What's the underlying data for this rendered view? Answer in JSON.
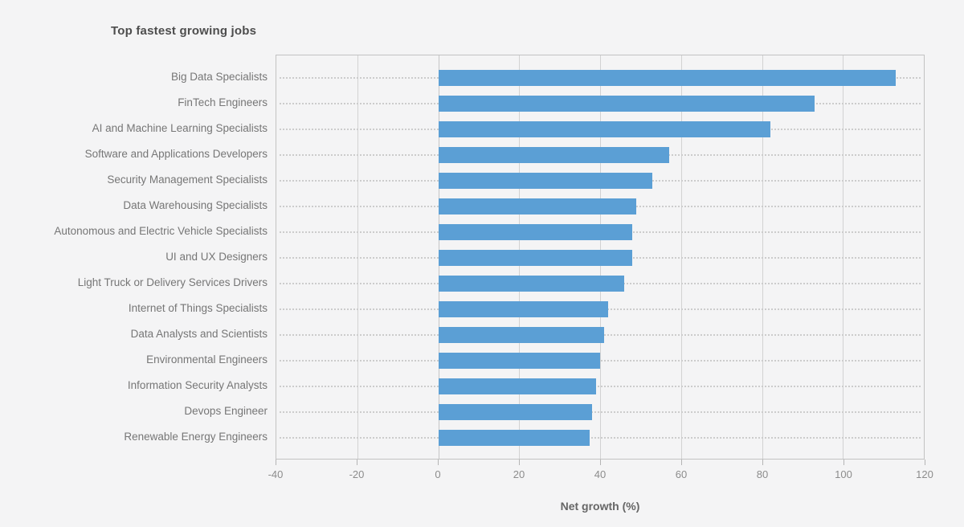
{
  "chart": {
    "title": "Top fastest growing jobs",
    "xlabel": "Net growth (%)"
  },
  "chart_data": {
    "type": "bar",
    "orientation": "horizontal",
    "title": "Top fastest growing jobs",
    "xlabel": "Net growth (%)",
    "ylabel": "",
    "xlim": [
      -40,
      120
    ],
    "xticks": [
      -40,
      -20,
      0,
      20,
      40,
      60,
      80,
      100,
      120
    ],
    "grid": true,
    "legend": "none",
    "bar_color": "#5b9fd5",
    "categories": [
      "Big Data Specialists",
      "FinTech Engineers",
      "AI and Machine Learning Specialists",
      "Software and Applications Developers",
      "Security Management Specialists",
      "Data Warehousing Specialists",
      "Autonomous and Electric Vehicle Specialists",
      "UI and UX Designers",
      "Light Truck or Delivery Services Drivers",
      "Internet of Things Specialists",
      "Data Analysts and Scientists",
      "Environmental Engineers",
      "Information Security Analysts",
      "Devops Engineer",
      "Renewable Energy Engineers"
    ],
    "values": [
      113,
      93,
      82,
      57,
      53,
      49,
      48,
      48,
      46,
      42,
      41,
      40,
      39,
      38,
      37.5
    ]
  }
}
